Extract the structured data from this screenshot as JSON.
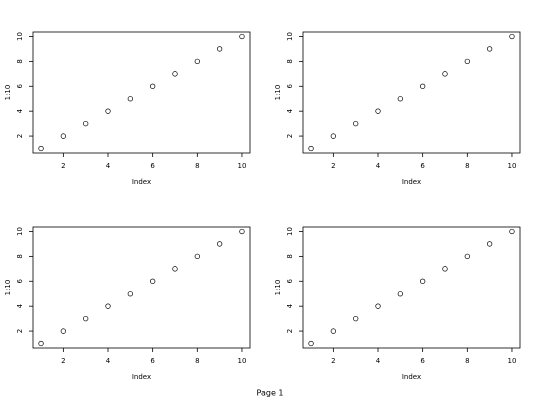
{
  "chart_data": [
    {
      "type": "scatter",
      "x": [
        1,
        2,
        3,
        4,
        5,
        6,
        7,
        8,
        9,
        10
      ],
      "values": [
        1,
        2,
        3,
        4,
        5,
        6,
        7,
        8,
        9,
        10
      ],
      "xlabel": "Index",
      "ylabel": "1:10",
      "xlim": [
        0.64,
        10.36
      ],
      "ylim": [
        0.64,
        10.36
      ],
      "xticks": [
        2,
        4,
        6,
        8,
        10
      ],
      "yticks": [
        2,
        4,
        6,
        8,
        10
      ],
      "color": "#000000"
    },
    {
      "type": "scatter",
      "x": [
        1,
        2,
        3,
        4,
        5,
        6,
        7,
        8,
        9,
        10
      ],
      "values": [
        1,
        2,
        3,
        4,
        5,
        6,
        7,
        8,
        9,
        10
      ],
      "xlabel": "Index",
      "ylabel": "1:10",
      "xlim": [
        0.64,
        10.36
      ],
      "ylim": [
        0.64,
        10.36
      ],
      "xticks": [
        2,
        4,
        6,
        8,
        10
      ],
      "yticks": [
        2,
        4,
        6,
        8,
        10
      ],
      "color": "#000000"
    },
    {
      "type": "scatter",
      "x": [
        1,
        2,
        3,
        4,
        5,
        6,
        7,
        8,
        9,
        10
      ],
      "values": [
        1,
        2,
        3,
        4,
        5,
        6,
        7,
        8,
        9,
        10
      ],
      "xlabel": "Index",
      "ylabel": "1:10",
      "xlim": [
        0.64,
        10.36
      ],
      "ylim": [
        0.64,
        10.36
      ],
      "xticks": [
        2,
        4,
        6,
        8,
        10
      ],
      "yticks": [
        2,
        4,
        6,
        8,
        10
      ],
      "color": "#000000"
    },
    {
      "type": "scatter",
      "x": [
        1,
        2,
        3,
        4,
        5,
        6,
        7,
        8,
        9,
        10
      ],
      "values": [
        1,
        2,
        3,
        4,
        5,
        6,
        7,
        8,
        9,
        10
      ],
      "xlabel": "Index",
      "ylabel": "1:10",
      "xlim": [
        0.64,
        10.36
      ],
      "ylim": [
        0.64,
        10.36
      ],
      "xticks": [
        2,
        4,
        6,
        8,
        10
      ],
      "yticks": [
        2,
        4,
        6,
        8,
        10
      ],
      "color": "#000000"
    }
  ],
  "footer": "Page 1"
}
